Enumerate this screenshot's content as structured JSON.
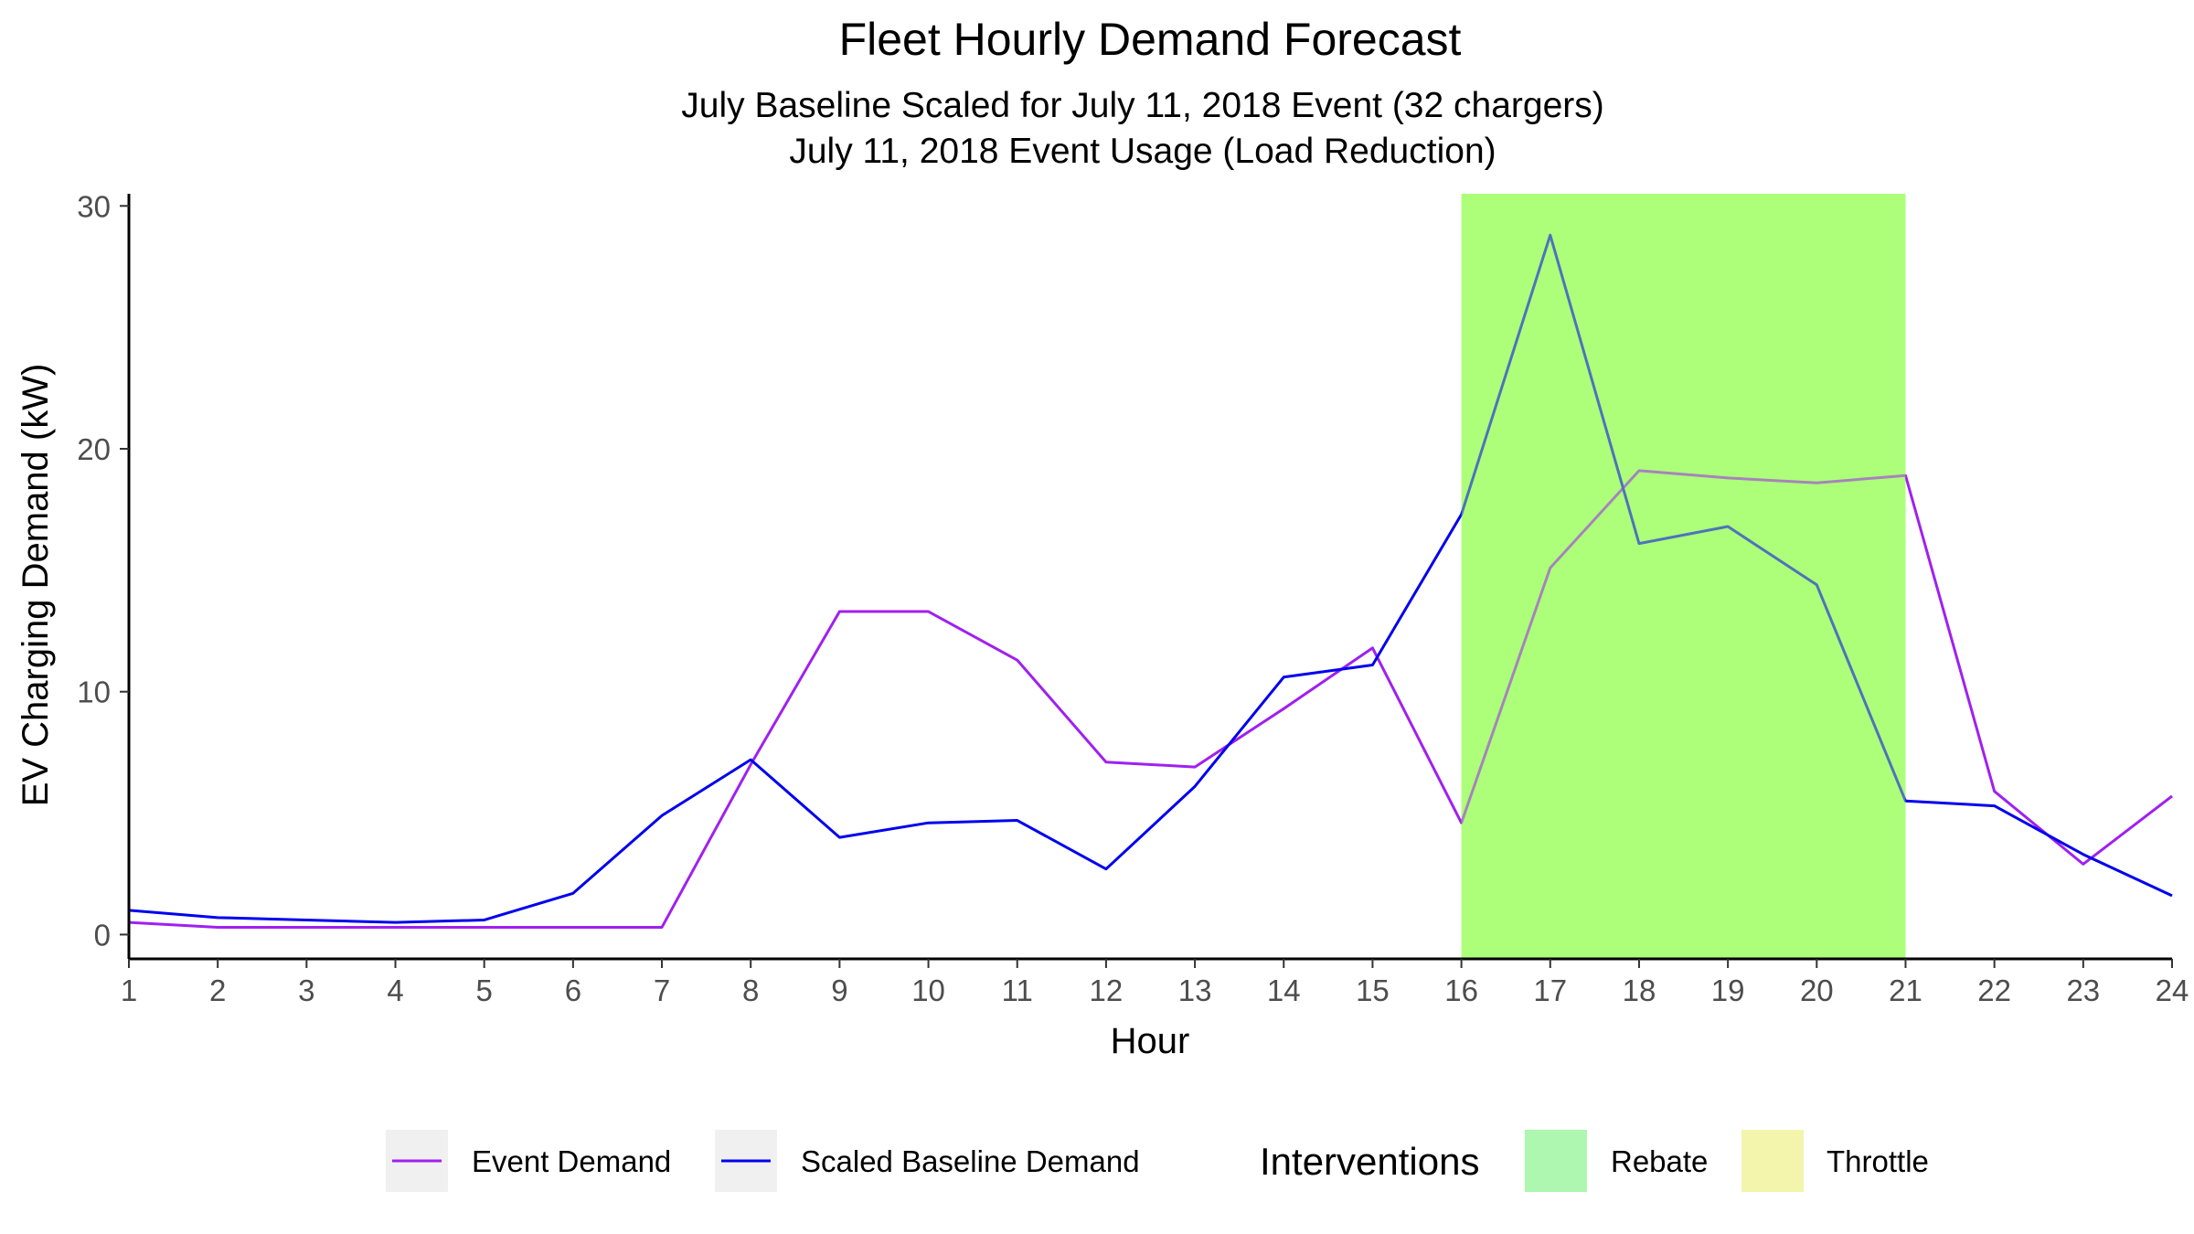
{
  "chart_data": {
    "type": "line",
    "title": "Fleet Hourly Demand Forecast",
    "subtitle_lines": [
      "July Baseline Scaled for July 11, 2018 Event (32 chargers)",
      "July 11, 2018 Event Usage (Load Reduction)"
    ],
    "xlabel": "Hour",
    "ylabel": "EV Charging Demand (kW)",
    "x": [
      1,
      2,
      3,
      4,
      5,
      6,
      7,
      8,
      9,
      10,
      11,
      12,
      13,
      14,
      15,
      16,
      17,
      18,
      19,
      20,
      21,
      22,
      23,
      24
    ],
    "xlim": [
      1,
      24
    ],
    "ylim": [
      -1,
      30.5
    ],
    "yticks": [
      0,
      10,
      20,
      30
    ],
    "grid": false,
    "series": [
      {
        "name": "Event Demand",
        "color": "#a020f0",
        "values": [
          0.5,
          0.3,
          0.3,
          0.3,
          0.3,
          0.3,
          0.3,
          7.0,
          13.3,
          13.3,
          11.3,
          7.1,
          6.9,
          9.3,
          11.8,
          4.6,
          15.1,
          19.1,
          18.8,
          18.6,
          18.9,
          5.9,
          2.9,
          5.7
        ]
      },
      {
        "name": "Scaled Baseline Demand",
        "color": "#0000ee",
        "values": [
          1.0,
          0.7,
          0.6,
          0.5,
          0.6,
          1.7,
          4.9,
          7.2,
          4.0,
          4.6,
          4.7,
          2.7,
          6.1,
          10.6,
          11.1,
          17.3,
          28.8,
          16.1,
          16.8,
          14.4,
          5.5,
          5.3,
          3.3,
          1.6
        ]
      }
    ],
    "interventions": [
      {
        "name": "Rebate",
        "start": 16,
        "end": 21,
        "color": "#adff7a"
      }
    ],
    "legend": {
      "placement": "bottom",
      "series_labels": [
        "Event Demand",
        "Scaled Baseline Demand"
      ],
      "interventions_title": "Interventions",
      "intervention_labels": [
        {
          "label": "Rebate",
          "color": "#adf7b0"
        },
        {
          "label": "Throttle",
          "color": "#f3f5ad"
        }
      ],
      "key_background": "#f0f0f0"
    }
  }
}
